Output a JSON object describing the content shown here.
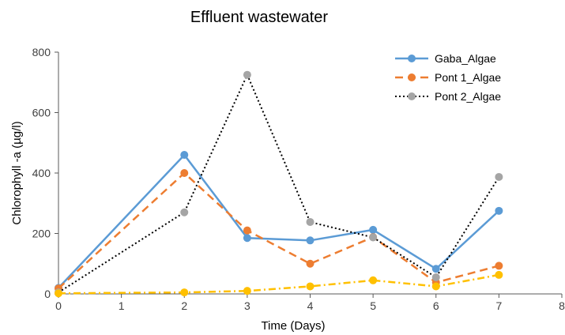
{
  "chart_data": {
    "type": "line",
    "title": "Effluent wastewater",
    "xlabel": "Time (Days)",
    "ylabel": "Chlorophyll -a (µg/l)",
    "xlim": [
      0,
      8
    ],
    "ylim": [
      0,
      800
    ],
    "x_ticks": [
      "0",
      "1",
      "2",
      "3",
      "4",
      "5",
      "6",
      "7",
      "8"
    ],
    "y_ticks": [
      "0",
      "200",
      "400",
      "600",
      "800"
    ],
    "grid": false,
    "legend_position": "top-right",
    "series": [
      {
        "name": "Gaba_Algae",
        "color": "#5B9BD5",
        "line_style": "solid",
        "x": [
          0,
          2,
          3,
          4,
          5,
          6,
          7
        ],
        "y": [
          20,
          460,
          185,
          177,
          212,
          83,
          275
        ]
      },
      {
        "name": "Pont 1_Algae",
        "color": "#ED7D31",
        "line_style": "dashed",
        "x": [
          0,
          2,
          3,
          4,
          5,
          6,
          7
        ],
        "y": [
          18,
          400,
          210,
          100,
          188,
          38,
          93
        ]
      },
      {
        "name": "Pont 2_Algae",
        "color": "#A5A5A5",
        "line_color": "#000000",
        "line_style": "dotted",
        "x": [
          0,
          2,
          3,
          4,
          5,
          6,
          7
        ],
        "y": [
          5,
          270,
          725,
          238,
          187,
          55,
          387
        ]
      },
      {
        "color": "#FFC000",
        "line_style": "dash-dot",
        "x": [
          0,
          2,
          3,
          4,
          5,
          6,
          7
        ],
        "y": [
          2,
          5,
          10,
          25,
          45,
          25,
          63
        ]
      }
    ]
  }
}
